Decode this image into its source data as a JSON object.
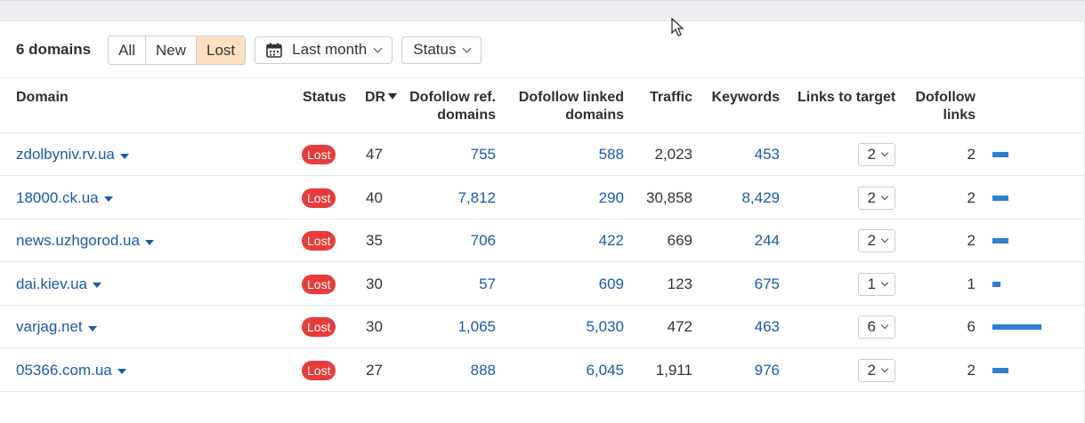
{
  "toolbar": {
    "count_label": "6 domains",
    "filters": [
      "All",
      "New",
      "Lost"
    ],
    "active_filter": "Lost",
    "period_label": "Last month",
    "status_label": "Status"
  },
  "columns": {
    "domain": "Domain",
    "status": "Status",
    "dr": "DR",
    "dofollow_ref_1": "Dofollow ref.",
    "dofollow_ref_2": "domains",
    "dofollow_linked_1": "Dofollow linked",
    "dofollow_linked_2": "domains",
    "traffic": "Traffic",
    "keywords": "Keywords",
    "links_to_target": "Links to target",
    "dofollow_links_1": "Dofollow",
    "dofollow_links_2": "links"
  },
  "rows": [
    {
      "domain": "zdolbyniv.rv.ua",
      "status": "Lost",
      "dr": "47",
      "ref_domains": "755",
      "linked_domains": "588",
      "traffic": "2,023",
      "keywords": "453",
      "links_to_target": "2",
      "dofollow_links": "2",
      "bar_fraction": 0.333
    },
    {
      "domain": "18000.ck.ua",
      "status": "Lost",
      "dr": "40",
      "ref_domains": "7,812",
      "linked_domains": "290",
      "traffic": "30,858",
      "keywords": "8,429",
      "links_to_target": "2",
      "dofollow_links": "2",
      "bar_fraction": 0.333
    },
    {
      "domain": "news.uzhgorod.ua",
      "status": "Lost",
      "dr": "35",
      "ref_domains": "706",
      "linked_domains": "422",
      "traffic": "669",
      "keywords": "244",
      "links_to_target": "2",
      "dofollow_links": "2",
      "bar_fraction": 0.333
    },
    {
      "domain": "dai.kiev.ua",
      "status": "Lost",
      "dr": "30",
      "ref_domains": "57",
      "linked_domains": "609",
      "traffic": "123",
      "keywords": "675",
      "links_to_target": "1",
      "dofollow_links": "1",
      "bar_fraction": 0.167
    },
    {
      "domain": "varjag.net",
      "status": "Lost",
      "dr": "30",
      "ref_domains": "1,065",
      "linked_domains": "5,030",
      "traffic": "472",
      "keywords": "463",
      "links_to_target": "6",
      "dofollow_links": "6",
      "bar_fraction": 1.0
    },
    {
      "domain": "05366.com.ua",
      "status": "Lost",
      "dr": "27",
      "ref_domains": "888",
      "linked_domains": "6,045",
      "traffic": "1,911",
      "keywords": "976",
      "links_to_target": "2",
      "dofollow_links": "2",
      "bar_fraction": 0.333
    }
  ],
  "colors": {
    "accent_link": "#1a5aa8",
    "lost_badge": "#e83c3c",
    "active_filter_bg": "#fce0c0",
    "bar": "#2d7fd3"
  }
}
